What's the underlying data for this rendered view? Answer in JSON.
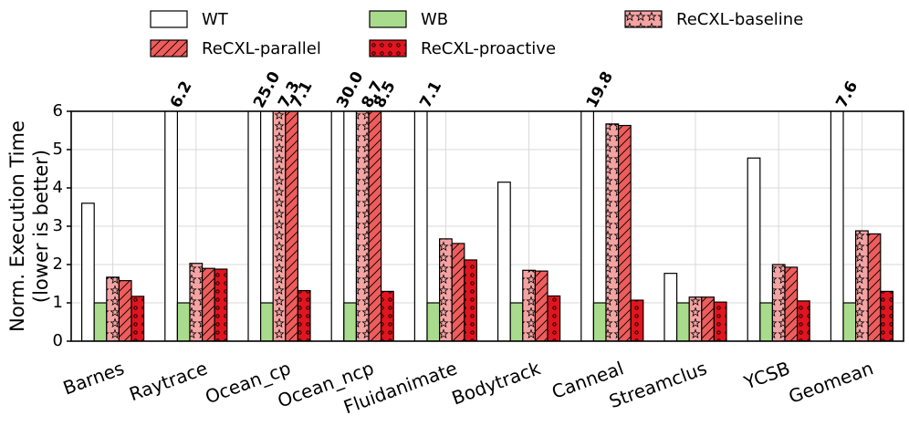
{
  "chart_data": {
    "type": "bar",
    "ylabel": [
      "Norm. Execution Time",
      "(lower is better)"
    ],
    "categories": [
      "Barnes",
      "Raytrace",
      "Ocean_cp",
      "Ocean_ncp",
      "Fluidanimate",
      "Bodytrack",
      "Canneal",
      "Streamclus",
      "YCSB",
      "Geomean"
    ],
    "series": [
      {
        "name": "WT",
        "color": "#ffffff",
        "pattern": "none",
        "values": [
          3.6,
          6.2,
          25.0,
          30.0,
          7.1,
          4.15,
          19.8,
          1.77,
          4.78,
          7.6
        ],
        "value_labels": [
          null,
          "6.2",
          "25.0",
          "30.0",
          "7.1",
          null,
          "19.8",
          null,
          null,
          "7.6"
        ]
      },
      {
        "name": "WB",
        "color": "#a8dc8c",
        "pattern": "none",
        "values": [
          1.0,
          1.0,
          1.0,
          1.0,
          1.0,
          1.0,
          1.0,
          1.0,
          1.0,
          1.0
        ]
      },
      {
        "name": "ReCXL-baseline",
        "color": "#f4a3a3",
        "pattern": "stars",
        "values": [
          1.67,
          2.03,
          7.3,
          8.7,
          2.67,
          1.85,
          5.67,
          1.15,
          2.0,
          2.88
        ],
        "value_labels": [
          null,
          null,
          "7.3",
          "8.7",
          null,
          null,
          null,
          null,
          null,
          null
        ]
      },
      {
        "name": "ReCXL-parallel",
        "color": "#ee5c5c",
        "pattern": "diagonal",
        "values": [
          1.58,
          1.9,
          7.1,
          8.5,
          2.55,
          1.83,
          5.63,
          1.15,
          1.93,
          2.8
        ],
        "value_labels": [
          null,
          null,
          "7.1",
          "8.5",
          null,
          null,
          null,
          null,
          null,
          null
        ]
      },
      {
        "name": "ReCXL-proactive",
        "color": "#e0151f",
        "pattern": "circles",
        "values": [
          1.17,
          1.88,
          1.32,
          1.3,
          2.12,
          1.18,
          1.07,
          1.02,
          1.05,
          1.3
        ]
      }
    ],
    "ylim": [
      0,
      6
    ],
    "yticks": [
      0,
      1,
      2,
      3,
      4,
      5,
      6
    ],
    "grid": true
  }
}
